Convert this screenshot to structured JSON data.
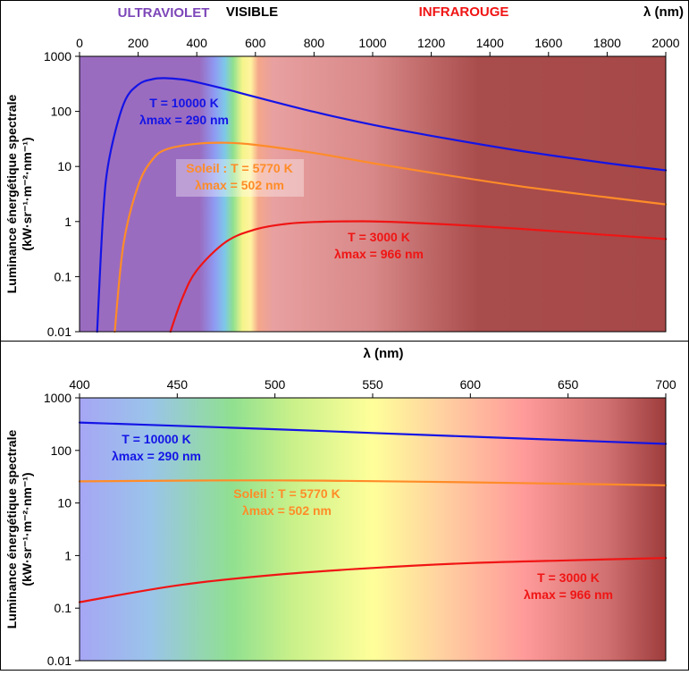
{
  "colors": {
    "blue": "#1414e6",
    "orange": "#ff8c28",
    "red": "#f01414",
    "uv_band": "#7d46b9",
    "ir_band": "#f01414",
    "visible_band": "#000000",
    "frame": "#000000"
  },
  "chart_data": [
    {
      "type": "line",
      "title": "",
      "band_labels": {
        "uv": "ULTRAVIOLET",
        "visible": "VISIBLE",
        "ir": "INFRAROUGE"
      },
      "xlabel": "λ (nm)",
      "ylabel_line1": "Luminance énergétique spectrale",
      "ylabel_line2": "(kW·sr⁻¹·m⁻²·nm⁻¹)",
      "xlim": [
        0,
        2000
      ],
      "ylim": [
        0.01,
        1000
      ],
      "yscale": "log",
      "x_ticks": [
        0,
        200,
        400,
        600,
        800,
        1000,
        1200,
        1400,
        1600,
        1800,
        2000
      ],
      "x_tick_labels": [
        "0",
        "200",
        "400",
        "600",
        "800",
        "1000",
        "1200",
        "1400",
        "1600",
        "1800",
        "2000"
      ],
      "y_ticks": [
        0.01,
        0.1,
        1,
        10,
        100,
        1000
      ],
      "y_tick_labels": [
        "0.01",
        "0.1",
        "1",
        "10",
        "100",
        "1000"
      ],
      "x_axis_position": "top",
      "grid": false,
      "series": [
        {
          "temperature_K": 10000,
          "x": [
            60,
            80,
            100,
            150,
            200,
            250,
            290,
            350,
            400,
            500,
            600,
            800,
            1000,
            1200,
            1500,
            1800,
            2000
          ],
          "y": [
            0.01,
            1.2,
            12.7,
            135,
            305,
            385,
            401,
            380,
            339,
            253,
            183,
            98,
            57,
            36,
            19.4,
            11.5,
            8.5
          ]
        },
        {
          "temperature_K": 5770,
          "x": [
            120,
            150,
            200,
            250,
            300,
            400,
            502,
            600,
            800,
            1000,
            1200,
            1500,
            1800,
            2000
          ],
          "y": [
            0.01,
            0.39,
            4.5,
            13.6,
            20.8,
            25.8,
            26.9,
            24.7,
            17.6,
            11.5,
            7.7,
            4.4,
            2.75,
            2.05
          ]
        },
        {
          "temperature_K": 3000,
          "x": [
            310,
            350,
            400,
            500,
            600,
            700,
            800,
            966,
            1100,
            1300,
            1500,
            1800,
            2000
          ],
          "y": [
            0.01,
            0.04,
            0.13,
            0.43,
            0.72,
            0.9,
            0.98,
            1.01,
            0.97,
            0.86,
            0.74,
            0.57,
            0.48
          ]
        }
      ],
      "annotations": [
        {
          "series": 0,
          "lines": [
            "T = 10000 K",
            "λmax = 290 nm"
          ]
        },
        {
          "series": 1,
          "lines": [
            "Soleil : T = 5770 K",
            "λmax = 502 nm"
          ]
        },
        {
          "series": 2,
          "lines": [
            "T = 3000 K",
            "λmax = 966 nm"
          ]
        }
      ]
    },
    {
      "type": "line",
      "title": "",
      "xlabel": "λ (nm)",
      "ylabel_line1": "Luminance énergétique spectrale",
      "ylabel_line2": "(kW·sr⁻¹·m⁻²·nm⁻¹)",
      "xlim": [
        400,
        700
      ],
      "ylim": [
        0.01,
        1000
      ],
      "yscale": "log",
      "x_ticks": [
        400,
        450,
        500,
        550,
        600,
        650,
        700
      ],
      "x_tick_labels": [
        "400",
        "450",
        "500",
        "550",
        "600",
        "650",
        "700"
      ],
      "y_ticks": [
        0.01,
        0.1,
        1,
        10,
        100,
        1000
      ],
      "y_tick_labels": [
        "0.01",
        "0.1",
        "1",
        "10",
        "100",
        "1000"
      ],
      "x_axis_position": "top",
      "grid": false,
      "series": [
        {
          "temperature_K": 10000,
          "x": [
            400,
            450,
            500,
            550,
            600,
            650,
            700
          ],
          "y": [
            339,
            293,
            253,
            215,
            183,
            156,
            133
          ]
        },
        {
          "temperature_K": 5770,
          "x": [
            400,
            450,
            500,
            550,
            600,
            650,
            700
          ],
          "y": [
            25.8,
            26.6,
            26.9,
            26.0,
            24.7,
            23.2,
            21.7
          ]
        },
        {
          "temperature_K": 3000,
          "x": [
            400,
            450,
            500,
            550,
            600,
            650,
            700
          ],
          "y": [
            0.13,
            0.27,
            0.43,
            0.58,
            0.72,
            0.81,
            0.9
          ]
        }
      ],
      "annotations": [
        {
          "series": 0,
          "lines": [
            "T = 10000 K",
            "λmax = 290 nm"
          ]
        },
        {
          "series": 1,
          "lines": [
            "Soleil : T = 5770 K",
            "λmax = 502 nm"
          ]
        },
        {
          "series": 2,
          "lines": [
            "T = 3000 K",
            "λmax = 966 nm"
          ]
        }
      ]
    }
  ]
}
